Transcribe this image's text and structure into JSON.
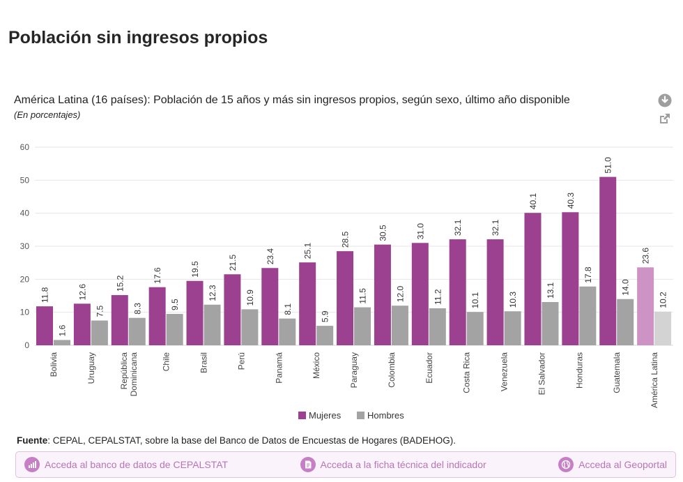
{
  "page": {
    "title": "Población sin ingresos propios"
  },
  "colors": {
    "mujeres": "#9c4190",
    "hombres": "#a3a3a3",
    "mujeres_highlight": "#cc93c4",
    "hombres_highlight": "#d3d3d3",
    "link_text": "#b775b6"
  },
  "chart_data": {
    "type": "bar",
    "title": "América Latina (16 países): Población de 15 años y más sin ingresos propios, según sexo, último año disponible",
    "subtitle": "(En porcentajes)",
    "categories": [
      "Bolivia",
      "Uruguay",
      "República Dominicana",
      "Chile",
      "Brasil",
      "Perú",
      "Panamá",
      "México",
      "Paraguay",
      "Colombia",
      "Ecuador",
      "Costa Rica",
      "Venezuela",
      "El Salvador",
      "Honduras",
      "Guatemala",
      "América Latina"
    ],
    "series": [
      {
        "name": "Mujeres",
        "values": [
          11.8,
          12.6,
          15.2,
          17.6,
          19.5,
          21.5,
          23.4,
          25.1,
          28.5,
          30.5,
          31.0,
          32.1,
          32.1,
          40.1,
          40.3,
          51.0,
          23.6
        ]
      },
      {
        "name": "Hombres",
        "values": [
          1.6,
          7.5,
          8.3,
          9.5,
          12.3,
          10.9,
          8.1,
          5.9,
          11.5,
          12.0,
          11.2,
          10.1,
          10.3,
          13.1,
          17.8,
          14.0,
          10.2
        ]
      }
    ],
    "highlight_category": "América Latina",
    "yticks": [
      0,
      10,
      20,
      30,
      40,
      50,
      60
    ],
    "ylim": [
      0,
      60
    ],
    "xlabel": "",
    "ylabel": "",
    "grid": true,
    "legend": "bottom-center"
  },
  "footer": {
    "source_label": "Fuente",
    "source_text": ": CEPAL, CEPALSTAT, sobre la base del Banco de Datos de Encuestas de Hogares (BADEHOG).",
    "links": [
      {
        "label": "Acceda al banco de datos de CEPALSTAT",
        "icon": "bar-chart-icon"
      },
      {
        "label": "Acceda a la ficha técnica del indicador",
        "icon": "document-icon"
      },
      {
        "label": "Acceda al Geoportal",
        "icon": "globe-icon"
      }
    ]
  },
  "tools": {
    "download_icon": "download-icon",
    "share_icon": "external-link-icon"
  }
}
